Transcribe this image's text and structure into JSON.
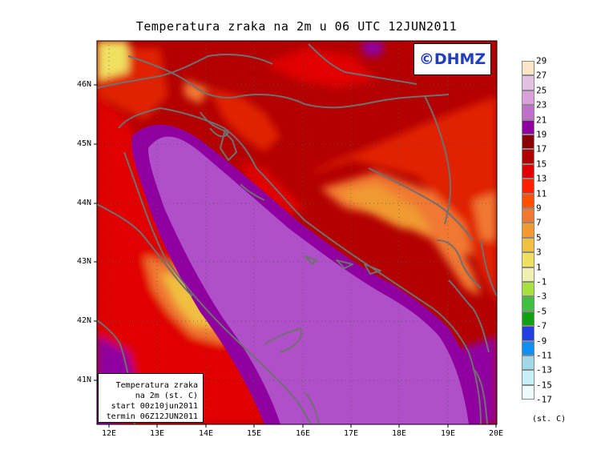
{
  "title": "Temperatura zraka na 2m u 06 UTC 12JUN2011",
  "logo": "©DHMZ",
  "info_box": [
    "Temperatura zraka",
    "na 2m (st. C)",
    "start 00z10jun2011",
    "termin 06Z12JUN2011"
  ],
  "lat_labels": [
    "46N",
    "45N",
    "44N",
    "43N",
    "42N",
    "41N"
  ],
  "lon_labels": [
    "12E",
    "13E",
    "14E",
    "15E",
    "16E",
    "17E",
    "18E",
    "19E",
    "20E"
  ],
  "legend": {
    "unit": "(st. C)",
    "labels": [
      "29",
      "27",
      "25",
      "23",
      "21",
      "19",
      "17",
      "15",
      "13",
      "11",
      "9",
      "7",
      "5",
      "3",
      "1",
      "-1",
      "-3",
      "-5",
      "-7",
      "-9",
      "-11",
      "-13",
      "-15",
      "-17"
    ],
    "colors": [
      "#fbe6c8",
      "#e2c2e2",
      "#d9a0dc",
      "#c070c8",
      "#9000a0",
      "#8a0000",
      "#b00000",
      "#e00000",
      "#ff2000",
      "#ff5000",
      "#f07830",
      "#f09a30",
      "#f0c040",
      "#f0e060",
      "#f0f0b0",
      "#a8e040",
      "#40c040",
      "#10a010",
      "#2040e0",
      "#1090f0",
      "#a0d8e8",
      "#c8f0f8",
      "#ecfcfc"
    ]
  }
}
